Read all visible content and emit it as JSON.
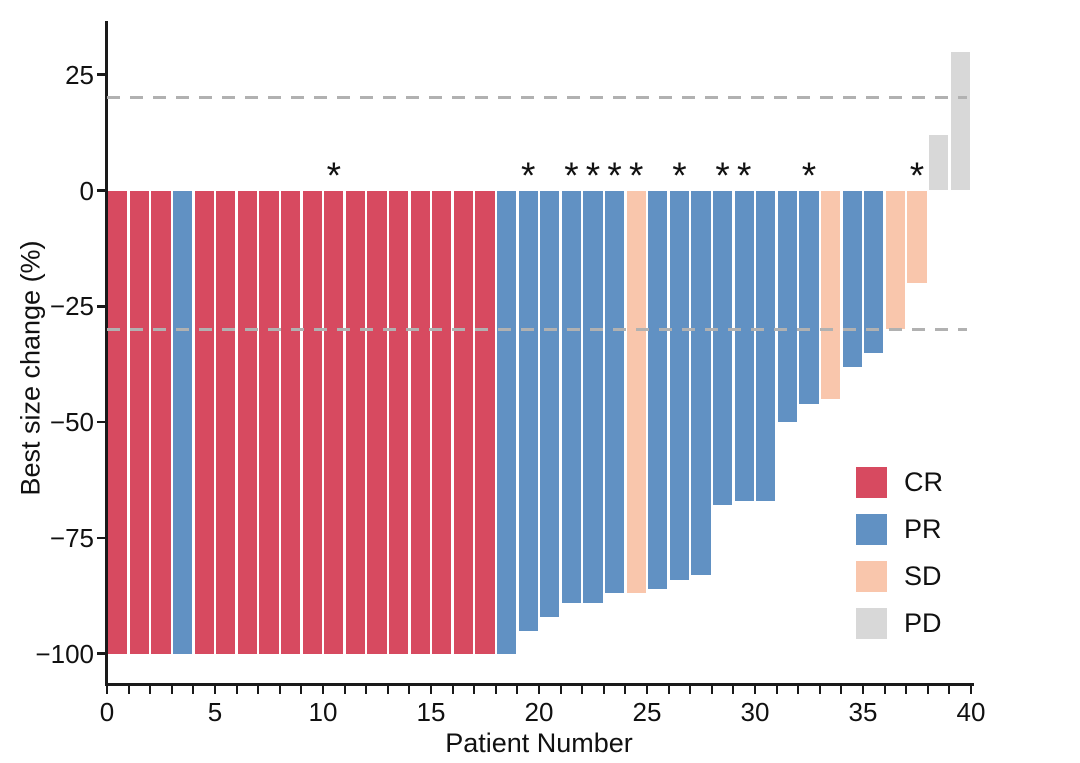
{
  "chart_data": {
    "type": "bar",
    "title": "",
    "xlabel": "Patient Number",
    "ylabel": "Best size change (%)",
    "grid": false,
    "legend_position": "inside-right",
    "x_axis": {
      "min": 0,
      "max": 40,
      "minor_tick_step": 1,
      "tick_values": [
        0,
        5,
        10,
        15,
        20,
        25,
        30,
        35,
        40
      ],
      "tick_labels": [
        "0",
        "5",
        "10",
        "15",
        "20",
        "25",
        "30",
        "35",
        "40"
      ]
    },
    "y_axis": {
      "min": -107,
      "max": 38,
      "tick_values": [
        25,
        0,
        -25,
        -50,
        -75,
        -100
      ],
      "tick_labels": [
        "25",
        "0",
        "−25",
        "−50",
        "−75",
        "−100"
      ]
    },
    "reference_lines": [
      {
        "y": 20,
        "style": "dashed",
        "color": "#b1b1b1"
      },
      {
        "y": -30,
        "style": "dashed",
        "color": "#b1b1b1"
      }
    ],
    "annotation_symbol": "*",
    "colors": {
      "CR": "#d74a60",
      "PR": "#6191c3",
      "SD": "#f9c6ac",
      "PD": "#d8d8d8"
    },
    "legend": {
      "items": [
        {
          "label": "CR",
          "color": "#d74a60"
        },
        {
          "label": "PR",
          "color": "#6191c3"
        },
        {
          "label": "SD",
          "color": "#f9c6ac"
        },
        {
          "label": "PD",
          "color": "#d8d8d8"
        }
      ]
    },
    "patients": [
      {
        "patient": 1,
        "value": -100,
        "response": "CR",
        "starred": false
      },
      {
        "patient": 2,
        "value": -100,
        "response": "CR",
        "starred": false
      },
      {
        "patient": 3,
        "value": -100,
        "response": "CR",
        "starred": false
      },
      {
        "patient": 4,
        "value": -100,
        "response": "PR",
        "starred": false
      },
      {
        "patient": 5,
        "value": -100,
        "response": "CR",
        "starred": false
      },
      {
        "patient": 6,
        "value": -100,
        "response": "CR",
        "starred": false
      },
      {
        "patient": 7,
        "value": -100,
        "response": "CR",
        "starred": false
      },
      {
        "patient": 8,
        "value": -100,
        "response": "CR",
        "starred": false
      },
      {
        "patient": 9,
        "value": -100,
        "response": "CR",
        "starred": false
      },
      {
        "patient": 10,
        "value": -100,
        "response": "CR",
        "starred": false
      },
      {
        "patient": 11,
        "value": -100,
        "response": "CR",
        "starred": true
      },
      {
        "patient": 12,
        "value": -100,
        "response": "CR",
        "starred": false
      },
      {
        "patient": 13,
        "value": -100,
        "response": "CR",
        "starred": false
      },
      {
        "patient": 14,
        "value": -100,
        "response": "CR",
        "starred": false
      },
      {
        "pat": 0,
        "patient": 15,
        "value": -100,
        "response": "CR",
        "starred": false
      },
      {
        "patient": 16,
        "value": -100,
        "response": "CR",
        "starred": false
      },
      {
        "patient": 17,
        "value": -100,
        "response": "CR",
        "starred": false
      },
      {
        "patient": 18,
        "value": -100,
        "response": "CR",
        "starred": false
      },
      {
        "patient": 19,
        "value": -100,
        "response": "PR",
        "starred": false
      },
      {
        "patient": 20,
        "value": -95,
        "response": "PR",
        "starred": true
      },
      {
        "patient": 21,
        "value": -92,
        "response": "PR",
        "starred": false
      },
      {
        "patient": 22,
        "value": -89,
        "response": "PR",
        "starred": true
      },
      {
        "patient": 23,
        "value": -89,
        "response": "PR",
        "starred": true
      },
      {
        "patient": 24,
        "value": -87,
        "response": "PR",
        "starred": true
      },
      {
        "patient": 25,
        "value": -87,
        "response": "SD",
        "starred": true
      },
      {
        "patient": 26,
        "value": -86,
        "response": "PR",
        "starred": false
      },
      {
        "patient": 27,
        "value": -84,
        "response": "PR",
        "starred": true
      },
      {
        "patient": 28,
        "value": -83,
        "response": "PR",
        "starred": false
      },
      {
        "patient": 29,
        "value": -68,
        "response": "PR",
        "starred": true
      },
      {
        "patient": 30,
        "value": -67,
        "response": "PR",
        "starred": true
      },
      {
        "patient": 31,
        "value": -67,
        "response": "PR",
        "starred": false
      },
      {
        "patient": 32,
        "value": -50,
        "response": "PR",
        "starred": false
      },
      {
        "patient": 33,
        "value": -46,
        "response": "PR",
        "starred": true
      },
      {
        "patient": 34,
        "value": -45,
        "response": "SD",
        "starred": false
      },
      {
        "patient": 35,
        "value": -38,
        "response": "PR",
        "starred": false
      },
      {
        "patient": 36,
        "value": -35,
        "response": "PR",
        "starred": false
      },
      {
        "patient": 37,
        "value": -30,
        "response": "SD",
        "starred": false
      },
      {
        "patient": 38,
        "value": -20,
        "response": "SD",
        "starred": true
      },
      {
        "patient": 39,
        "value": 12,
        "response": "PD",
        "starred": false
      },
      {
        "patient": 40,
        "value": 30,
        "response": "PD",
        "starred": false
      }
    ]
  }
}
